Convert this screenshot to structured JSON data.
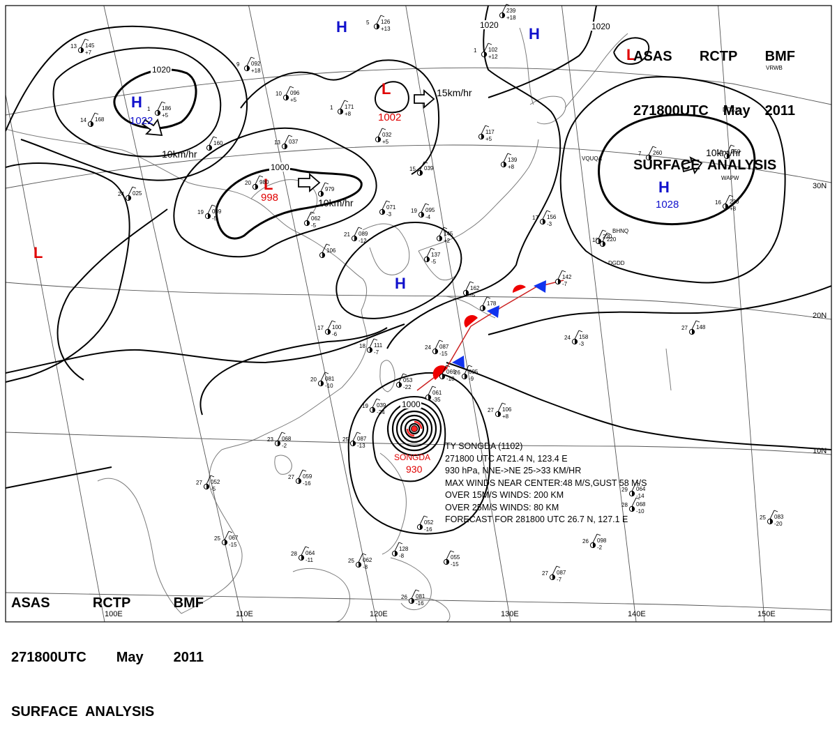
{
  "header": {
    "line1": [
      "ASAS",
      "RCTP",
      "BMF"
    ],
    "line2": [
      "271800UTC",
      "May",
      "2011"
    ],
    "line3": "SURFACE  ANALYSIS"
  },
  "colors": {
    "high": "#1111cc",
    "low": "#e00000",
    "isobar": "#000000",
    "grid": "#555555",
    "coast": "#7a7a7a",
    "warm_front": "#ee0000",
    "cold_front": "#1133ee"
  },
  "longitude_labels": [
    {
      "text": "100E"
    },
    {
      "text": "110E"
    },
    {
      "text": "120E"
    },
    {
      "text": "130E"
    },
    {
      "text": "140E"
    },
    {
      "text": "150E"
    }
  ],
  "latitude_labels": [
    {
      "text": "30N"
    },
    {
      "text": "20N"
    },
    {
      "text": "10N"
    }
  ],
  "isobar_labels": [
    {
      "text": "1020"
    },
    {
      "text": "1020"
    },
    {
      "text": "1020"
    },
    {
      "text": "1000"
    },
    {
      "text": "1000"
    }
  ],
  "pressure_systems": [
    {
      "type": "H",
      "value": "1022"
    },
    {
      "type": "H",
      "value": ""
    },
    {
      "type": "L",
      "value": "998"
    },
    {
      "type": "L",
      "value": "1002"
    },
    {
      "type": "H",
      "value": ""
    },
    {
      "type": "H",
      "value": "1028"
    },
    {
      "type": "L",
      "value": ""
    },
    {
      "type": "L",
      "value": ""
    },
    {
      "type": "H",
      "value": ""
    }
  ],
  "motion_labels": [
    {
      "text": "10km/hr"
    },
    {
      "text": "10km/hr"
    },
    {
      "text": "15km/hr"
    },
    {
      "text": "10km/hr"
    }
  ],
  "typhoon": {
    "name": "SONGDA",
    "pressure": "930",
    "lines": [
      "TY  SONGDA  (1102)",
      "271800 UTC  AT21.4 N, 123.4 E",
      "930 hPa, NNE->NE  25->33 KM/HR",
      "MAX WINDS NEAR CENTER:48 M/S,GUST 58 M/S",
      "OVER 15M/S WINDS: 200 KM",
      "OVER 25M/S WINDS: 80 KM",
      "FORECAST FOR 281800 UTC 26.7 N, 127.1 E"
    ]
  },
  "station_codes": [
    "VQUQA",
    "DGDD",
    "BHNQ",
    "WAPW",
    "DOZJ2",
    "VRWB"
  ],
  "station_plots": [
    {
      "t": "13",
      "p": "145",
      "tend": "+7"
    },
    {
      "t": "5",
      "p": "126",
      "tend": "+13"
    },
    {
      "t": "9",
      "p": "092",
      "tend": "+18"
    },
    {
      "t": "14",
      "p": "168",
      "tend": ""
    },
    {
      "t": "1",
      "p": "186",
      "tend": "+5"
    },
    {
      "t": "",
      "p": "160",
      "tend": ""
    },
    {
      "t": "10",
      "p": "096",
      "tend": "+5"
    },
    {
      "t": "1",
      "p": "171",
      "tend": "+8"
    },
    {
      "t": "",
      "p": "239",
      "tend": "+18"
    },
    {
      "t": "1",
      "p": "102",
      "tend": "+12"
    },
    {
      "t": "13",
      "p": "037",
      "tend": ""
    },
    {
      "t": "",
      "p": "032",
      "tend": "+5"
    },
    {
      "t": "20",
      "p": "980",
      "tend": ""
    },
    {
      "t": "",
      "p": "979",
      "tend": ""
    },
    {
      "t": "15",
      "p": "039",
      "tend": ""
    },
    {
      "t": "",
      "p": "117",
      "tend": "+5"
    },
    {
      "t": "",
      "p": "139",
      "tend": "+8"
    },
    {
      "t": "24",
      "p": "025",
      "tend": ""
    },
    {
      "t": "19",
      "p": "089",
      "tend": "-5"
    },
    {
      "t": "",
      "p": "062",
      "tend": "-5"
    },
    {
      "t": "",
      "p": "071",
      "tend": "-3"
    },
    {
      "t": "19",
      "p": "095",
      "tend": "-4"
    },
    {
      "t": "",
      "p": "145",
      "tend": "+2"
    },
    {
      "t": "17",
      "p": "156",
      "tend": "-3"
    },
    {
      "t": "7",
      "p": "260",
      "tend": ""
    },
    {
      "t": "12",
      "p": "250",
      "tend": ""
    },
    {
      "t": "21",
      "p": "089",
      "tend": "-12"
    },
    {
      "t": "",
      "p": "106",
      "tend": ""
    },
    {
      "t": "",
      "p": "137",
      "tend": "-5"
    },
    {
      "t": "18",
      "p": "220",
      "tend": ""
    },
    {
      "t": "16",
      "p": "230",
      "tend": "+8"
    },
    {
      "t": "",
      "p": "162",
      "tend": "-5"
    },
    {
      "t": "",
      "p": "142",
      "tend": "-7"
    },
    {
      "t": "",
      "p": "178",
      "tend": ""
    },
    {
      "t": "17",
      "p": "100",
      "tend": "-6"
    },
    {
      "t": "18",
      "p": "111",
      "tend": "-7"
    },
    {
      "t": "24",
      "p": "087",
      "tend": "-15"
    },
    {
      "t": "24",
      "p": "158",
      "tend": "-3"
    },
    {
      "t": "27",
      "p": "148",
      "tend": ""
    },
    {
      "t": "20",
      "p": "081",
      "tend": "-10"
    },
    {
      "t": "",
      "p": "069",
      "tend": "-10"
    },
    {
      "t": "26",
      "p": "095",
      "tend": "-9"
    },
    {
      "t": "",
      "p": "053",
      "tend": "-22"
    },
    {
      "t": "",
      "p": "061",
      "tend": "-35"
    },
    {
      "t": "19",
      "p": "039",
      "tend": "-24"
    },
    {
      "t": "27",
      "p": "106",
      "tend": "+8"
    },
    {
      "t": "23",
      "p": "068",
      "tend": "-2"
    },
    {
      "t": "25",
      "p": "087",
      "tend": "-13"
    },
    {
      "t": "27",
      "p": "052",
      "tend": "-5"
    },
    {
      "t": "27",
      "p": "059",
      "tend": "-16"
    },
    {
      "t": "29",
      "p": "064",
      "tend": "-14"
    },
    {
      "t": "28",
      "p": "068",
      "tend": "-10"
    },
    {
      "t": "25",
      "p": "083",
      "tend": "-20"
    },
    {
      "t": "25",
      "p": "067",
      "tend": "-15"
    },
    {
      "t": "28",
      "p": "064",
      "tend": "-11"
    },
    {
      "t": "25",
      "p": "062",
      "tend": "-8"
    },
    {
      "t": "",
      "p": "128",
      "tend": "-8"
    },
    {
      "t": "",
      "p": "052",
      "tend": "-16"
    },
    {
      "t": "",
      "p": "055",
      "tend": "-15"
    },
    {
      "t": "26",
      "p": "098",
      "tend": "-2"
    },
    {
      "t": "27",
      "p": "087",
      "tend": "-7"
    },
    {
      "t": "26",
      "p": "081",
      "tend": "-16"
    },
    {
      "t": "",
      "p": "220",
      "tend": ""
    }
  ]
}
